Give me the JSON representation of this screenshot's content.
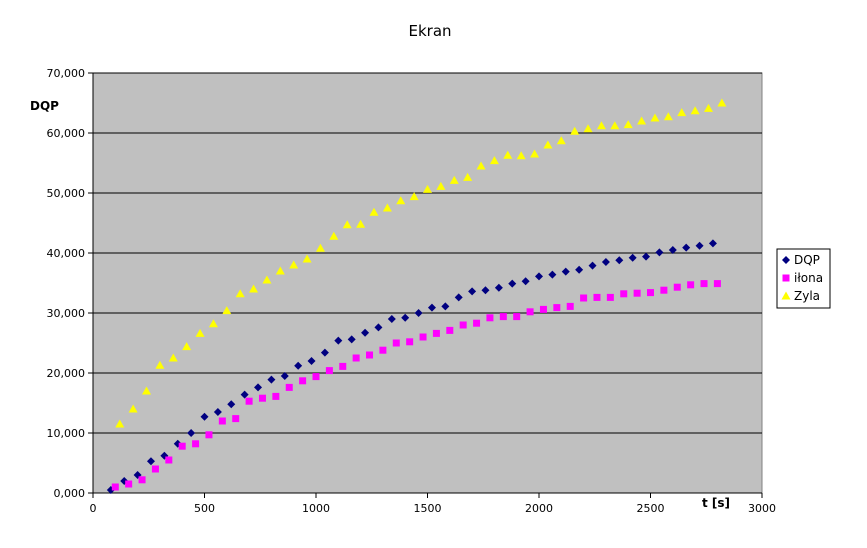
{
  "chart_data": {
    "type": "scatter",
    "title": "Ekran",
    "xlabel": "t [s]",
    "ylabel": "DQP",
    "xlim": [
      0,
      3000
    ],
    "ylim": [
      0,
      70000
    ],
    "xticks": [
      0,
      500,
      1000,
      1500,
      2000,
      2500,
      3000
    ],
    "yticks": [
      0,
      10000,
      20000,
      30000,
      40000,
      50000,
      60000,
      70000
    ],
    "ytick_labels": [
      "0,000",
      "10,000",
      "20,000",
      "30,000",
      "40,000",
      "50,000",
      "60,000",
      "70,000"
    ],
    "grid": "horizontal",
    "plot_background": "#c0c0c0",
    "legend_position": "right",
    "series": [
      {
        "name": "DQP",
        "marker": "diamond",
        "color": "#000080",
        "x": [
          80,
          140,
          200,
          260,
          320,
          380,
          440,
          500,
          560,
          620,
          680,
          740,
          800,
          860,
          920,
          980,
          1040,
          1100,
          1160,
          1220,
          1280,
          1340,
          1400,
          1460,
          1520,
          1580,
          1640,
          1700,
          1760,
          1820,
          1880,
          1940,
          2000,
          2060,
          2120,
          2180,
          2240,
          2300,
          2360,
          2420,
          2480,
          2540,
          2600,
          2660,
          2720,
          2780
        ],
        "y": [
          500,
          2000,
          3000,
          5300,
          6200,
          8200,
          10000,
          12700,
          13500,
          14800,
          16400,
          17600,
          18900,
          19500,
          21200,
          22000,
          23400,
          25400,
          25600,
          26700,
          27600,
          29000,
          29200,
          30000,
          30900,
          31100,
          32600,
          33600,
          33800,
          34200,
          34900,
          35300,
          36100,
          36400,
          36900,
          37200,
          37900,
          38500,
          38800,
          39200,
          39400,
          40100,
          40500,
          40900,
          41200,
          41600
        ]
      },
      {
        "name": "iłona",
        "marker": "square",
        "color": "#ff00ff",
        "x": [
          100,
          160,
          220,
          280,
          340,
          400,
          460,
          520,
          580,
          640,
          700,
          760,
          820,
          880,
          940,
          1000,
          1060,
          1120,
          1180,
          1240,
          1300,
          1360,
          1420,
          1480,
          1540,
          1600,
          1660,
          1720,
          1780,
          1840,
          1900,
          1960,
          2020,
          2080,
          2140,
          2200,
          2260,
          2320,
          2380,
          2440,
          2500,
          2560,
          2620,
          2680,
          2740,
          2800
        ],
        "y": [
          1000,
          1500,
          2200,
          4000,
          5500,
          7800,
          8200,
          9700,
          12000,
          12400,
          15300,
          15800,
          16100,
          17600,
          18700,
          19400,
          20400,
          21100,
          22500,
          23000,
          23800,
          25000,
          25200,
          26000,
          26600,
          27100,
          28000,
          28300,
          29200,
          29400,
          29400,
          30200,
          30600,
          30900,
          31100,
          32500,
          32600,
          32600,
          33200,
          33300,
          33400,
          33800,
          34300,
          34700,
          34900,
          34900
        ]
      },
      {
        "name": "Zyla",
        "marker": "triangle",
        "color": "#ffff00",
        "x": [
          120,
          180,
          240,
          300,
          360,
          420,
          480,
          540,
          600,
          660,
          720,
          780,
          840,
          900,
          960,
          1020,
          1080,
          1140,
          1200,
          1260,
          1320,
          1380,
          1440,
          1500,
          1560,
          1620,
          1680,
          1740,
          1800,
          1860,
          1920,
          1980,
          2040,
          2100,
          2160,
          2220,
          2280,
          2340,
          2400,
          2460,
          2520,
          2580,
          2640,
          2700,
          2760,
          2820
        ],
        "y": [
          11500,
          14000,
          17000,
          21300,
          22500,
          24400,
          26600,
          28200,
          30400,
          33200,
          34000,
          35500,
          37000,
          38000,
          39000,
          40800,
          42800,
          44700,
          44800,
          46800,
          47500,
          48700,
          49400,
          50600,
          51100,
          52100,
          52600,
          54500,
          55400,
          56300,
          56200,
          56500,
          58000,
          58700,
          60300,
          60700,
          61200,
          61200,
          61400,
          62000,
          62500,
          62700,
          63400,
          63700,
          64100,
          65000
        ]
      }
    ]
  }
}
